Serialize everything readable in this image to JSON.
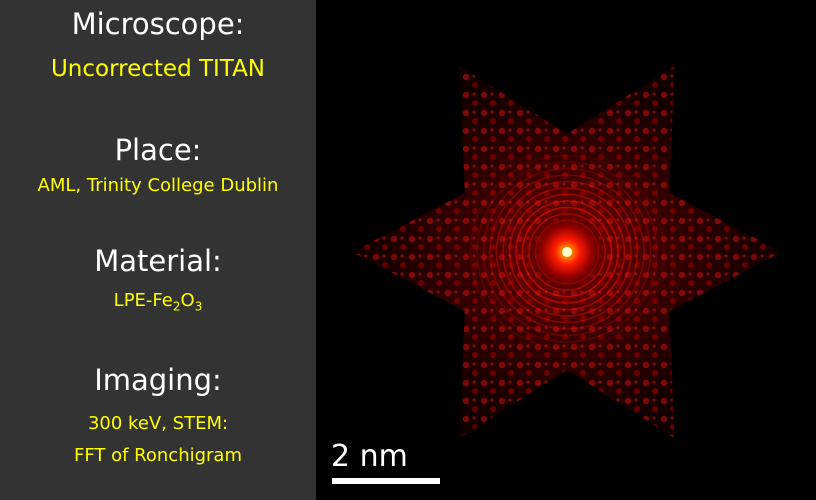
{
  "info": {
    "microscope": {
      "heading": "Microscope:",
      "value": "Uncorrected TITAN"
    },
    "place": {
      "heading": "Place:",
      "value": "AML, Trinity College Dublin"
    },
    "material": {
      "heading": "Material:",
      "value_base": "LPE-Fe",
      "sub1": "2",
      "mid": "O",
      "sub2": "3"
    },
    "imaging": {
      "heading": "Imaging:",
      "line1": "300 keV, STEM:",
      "line2": "FFT of Ronchigram"
    }
  },
  "image": {
    "scalebar_label": "2 nm",
    "colors": {
      "background": "#000000",
      "glow": "#ff2200",
      "center": "#ffffaa"
    }
  }
}
